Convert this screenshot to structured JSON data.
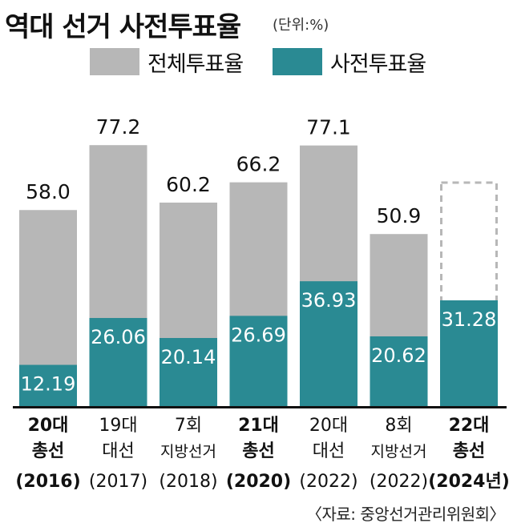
{
  "header": {
    "title": "역대 선거 사전투표율",
    "unit": "(단위:%)"
  },
  "source": "〈자료: 중앙선거관리위원회〉",
  "colors": {
    "total": "#b7b7b7",
    "early": "#2a8a93",
    "pending_outline": "#b7b7b7",
    "axis": "#111111"
  },
  "chart_data": {
    "type": "bar",
    "ylim": [
      0,
      100
    ],
    "legend_position": "top",
    "categories": [
      [
        "20대",
        "총선",
        "(2016)"
      ],
      [
        "19대",
        "대선",
        "(2017)"
      ],
      [
        "7회",
        "지방선거",
        "(2018)"
      ],
      [
        "21대",
        "총선",
        "(2020)"
      ],
      [
        "20대",
        "대선",
        "(2022)"
      ],
      [
        "8회",
        "지방선거",
        "(2022)"
      ],
      [
        "22대",
        "총선",
        "(2024년)"
      ]
    ],
    "bold_categories": [
      true,
      false,
      false,
      true,
      false,
      false,
      true
    ],
    "series": [
      {
        "name": "전체투표율",
        "values": [
          58.0,
          77.2,
          60.2,
          66.2,
          77.1,
          50.9,
          null
        ],
        "labels": [
          "58.0",
          "77.2",
          "60.2",
          "66.2",
          "77.1",
          "50.9",
          ""
        ]
      },
      {
        "name": "사전투표율",
        "values": [
          12.19,
          26.06,
          20.14,
          26.69,
          36.93,
          20.62,
          31.28
        ],
        "labels": [
          "12.19",
          "26.06",
          "20.14",
          "26.69",
          "36.93",
          "20.62",
          "31.28"
        ]
      }
    ],
    "pending_total_outline": [
      false,
      false,
      false,
      false,
      false,
      false,
      true
    ]
  }
}
